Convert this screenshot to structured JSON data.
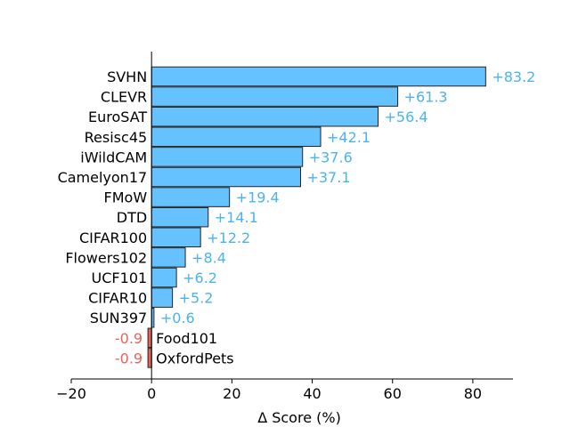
{
  "chart_data": {
    "type": "bar",
    "orientation": "horizontal",
    "title": "",
    "xlabel": "Δ Score (%)",
    "ylabel": "",
    "xlim": [
      -20,
      90
    ],
    "x_ticks": [
      -20,
      0,
      20,
      40,
      60,
      80
    ],
    "x_tick_labels": [
      "−20",
      "0",
      "20",
      "40",
      "60",
      "80"
    ],
    "grid": false,
    "categories": [
      "SVHN",
      "CLEVR",
      "EuroSAT",
      "Resisc45",
      "iWildCAM",
      "Camelyon17",
      "FMoW",
      "DTD",
      "CIFAR100",
      "Flowers102",
      "UCF101",
      "CIFAR10",
      "SUN397",
      "Food101",
      "OxfordPets"
    ],
    "values": [
      83.2,
      61.3,
      56.4,
      42.1,
      37.6,
      37.1,
      19.4,
      14.1,
      12.2,
      8.4,
      6.2,
      5.2,
      0.6,
      -0.9,
      -0.9
    ],
    "value_labels": [
      "+83.2",
      "+61.3",
      "+56.4",
      "+42.1",
      "+37.6",
      "+37.1",
      "+19.4",
      "+14.1",
      "+12.2",
      "+8.4",
      "+6.2",
      "+5.2",
      "+0.6",
      "-0.9",
      "-0.9"
    ],
    "colors": {
      "positive_bar": "#66c2ff",
      "negative_bar": "#e8645a",
      "positive_label": "#4ab3f0",
      "negative_label": "#e8645a",
      "bar_edge": "#222222",
      "axis": "#000000"
    }
  }
}
